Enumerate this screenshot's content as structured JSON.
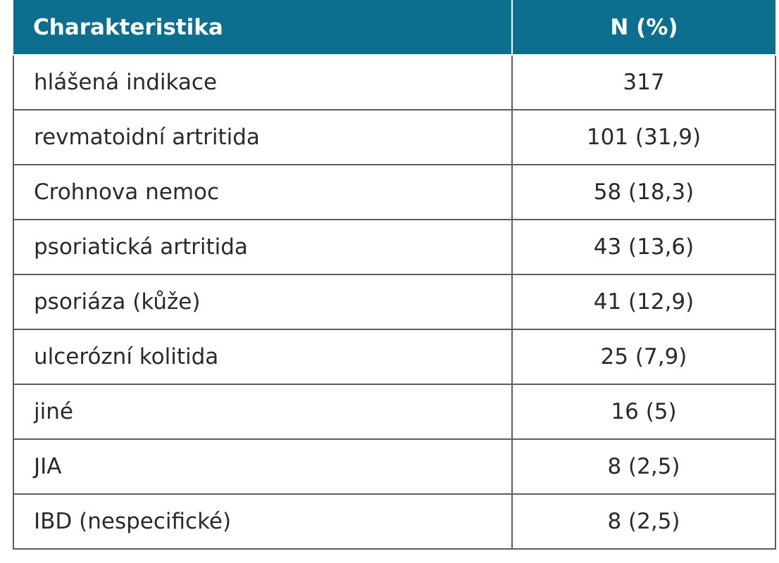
{
  "table": {
    "headers": [
      "Charakteristika",
      "N (%)"
    ],
    "rows": [
      [
        "hlášená indikace",
        "317"
      ],
      [
        "revmatoidní artritida",
        "101 (31,9)"
      ],
      [
        "Crohnova nemoc",
        "58 (18,3)"
      ],
      [
        "psoriatická artritida",
        "43 (13,6)"
      ],
      [
        "psoriáza (kůže)",
        "41 (12,9)"
      ],
      [
        "ulcerózní kolitida",
        "25 (7,9)"
      ],
      [
        "jiné",
        "16 (5)"
      ],
      [
        "JIA",
        "8 (2,5)"
      ],
      [
        "IBD (nespecifické)",
        "8 (2,5)"
      ]
    ]
  },
  "colors": {
    "header_bg": "#0d6f8f",
    "header_text": "#ffffff",
    "border": "#5d5d5d",
    "text": "#2a2a2a"
  }
}
